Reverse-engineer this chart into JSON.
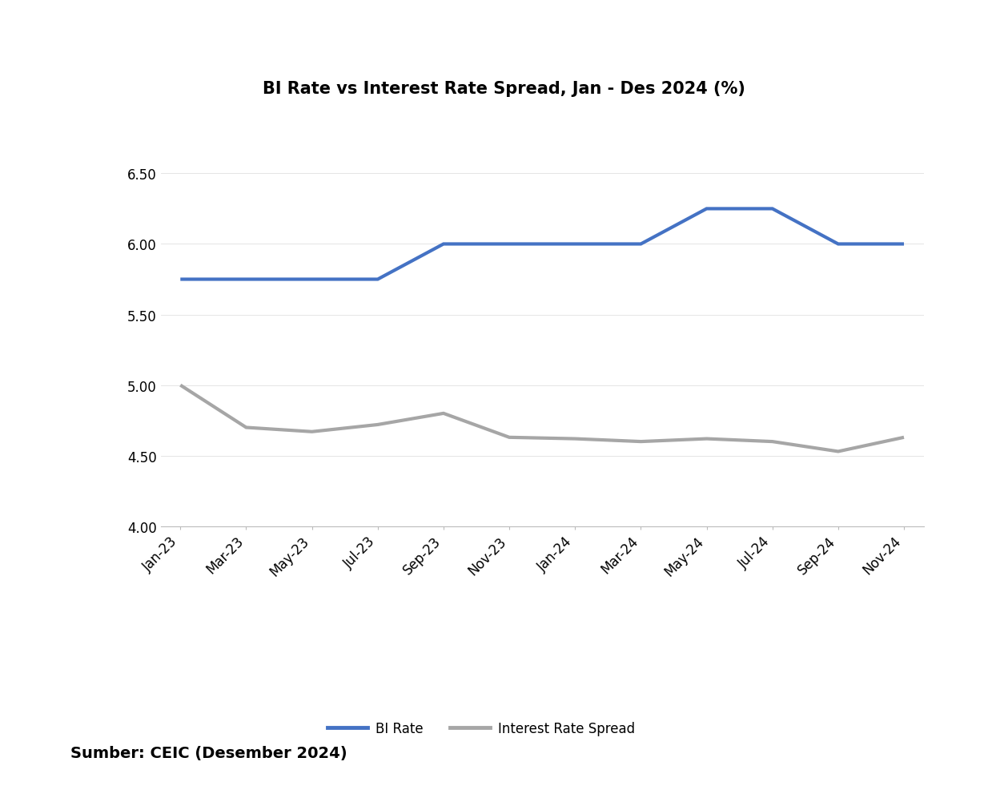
{
  "title": "BI Rate vs Interest Rate Spread, Jan - Des 2024 (%)",
  "source_text": "Sumber: CEIC (Desember 2024)",
  "x_labels": [
    "Jan-23",
    "Mar-23",
    "May-23",
    "Jul-23",
    "Sep-23",
    "Nov-23",
    "Jan-24",
    "Mar-24",
    "May-24",
    "Jul-24",
    "Sep-24",
    "Nov-24"
  ],
  "bi_rate": [
    5.75,
    5.75,
    5.75,
    5.75,
    6.0,
    6.0,
    6.0,
    6.0,
    6.25,
    6.25,
    6.0,
    6.0
  ],
  "interest_spread": [
    5.0,
    4.7,
    4.67,
    4.72,
    4.8,
    4.63,
    4.62,
    4.6,
    4.62,
    4.6,
    4.53,
    4.63
  ],
  "bi_rate_color": "#4472C4",
  "spread_color": "#A6A6A6",
  "ylim": [
    4.0,
    6.7
  ],
  "yticks": [
    4.0,
    4.5,
    5.0,
    5.5,
    6.0,
    6.5
  ],
  "line_width": 3.0,
  "title_fontsize": 15,
  "tick_fontsize": 12,
  "legend_fontsize": 12,
  "source_fontsize": 14,
  "chart_bg": "#FFFFFF",
  "outer_bg": "#FFFFFF",
  "border_color": "#C0C0C0"
}
